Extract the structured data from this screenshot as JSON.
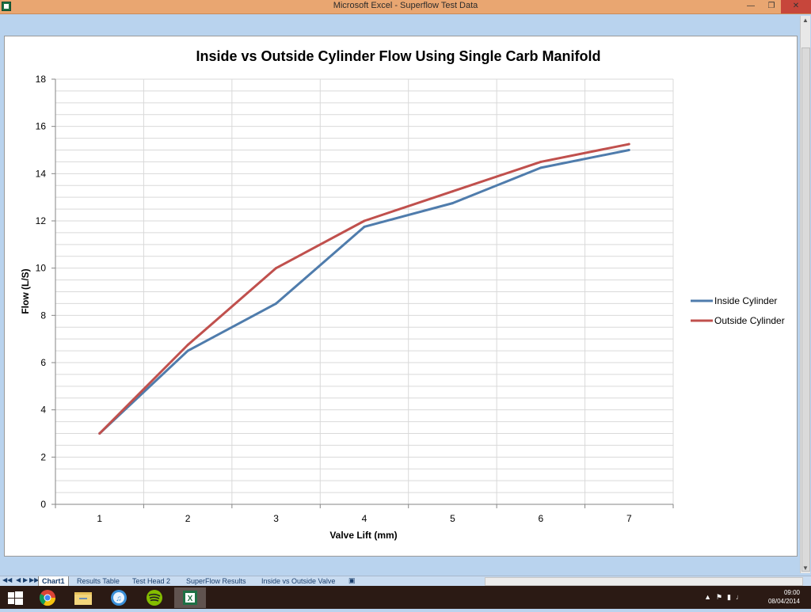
{
  "window": {
    "title": "Microsoft Excel - Superflow Test Data"
  },
  "sheet_tabs": [
    "Chart1",
    "Results Table",
    "Test Head 2",
    "SuperFlow Results",
    "Inside vs Outside Valve"
  ],
  "taskbar": {
    "time": "09:00",
    "date": "08/04/2014",
    "apps": [
      "windows-start",
      "chrome",
      "file-explorer",
      "itunes",
      "spotify",
      "excel"
    ]
  },
  "colors": {
    "inside": "#4f7cac",
    "outside": "#c0504d",
    "gridline": "#d9d9d9"
  },
  "chart_data": {
    "type": "line",
    "title": "Inside vs Outside Cylinder Flow Using Single Carb Manifold",
    "xlabel": "Valve Lift (mm)",
    "ylabel": "Flow (L/S)",
    "categories": [
      1,
      2,
      3,
      4,
      5,
      6,
      7
    ],
    "ylim": [
      0,
      18
    ],
    "yticks": [
      0,
      2,
      4,
      6,
      8,
      10,
      12,
      14,
      16,
      18
    ],
    "minor_grid_step": 0.5,
    "grid": true,
    "legend_position": "right",
    "series": [
      {
        "name": "Inside Cylinder",
        "values": [
          3.0,
          6.5,
          8.5,
          11.75,
          12.75,
          14.25,
          15.0
        ]
      },
      {
        "name": "Outside Cylinder",
        "values": [
          3.0,
          6.75,
          10.0,
          12.0,
          13.25,
          14.5,
          15.25
        ]
      }
    ]
  }
}
